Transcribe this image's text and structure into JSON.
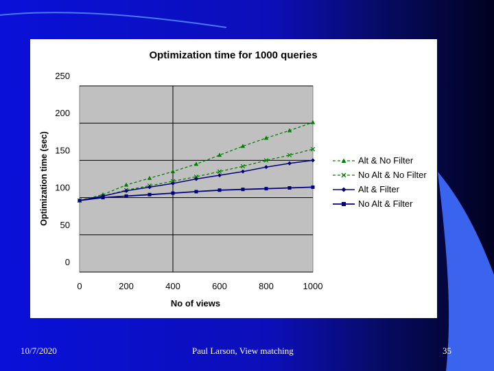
{
  "colors": {
    "background": "#0a10d8",
    "plot_area": "#c0c0c0",
    "green": "#008000",
    "navy": "#00007a",
    "accent_blue": "#3a63ee"
  },
  "footer": {
    "date": "10/7/2020",
    "title": "Paul Larson, View matching",
    "page": "35"
  },
  "chart_data": {
    "type": "line",
    "title": "Optimization time for 1000 queries",
    "xlabel": "No of views",
    "ylabel": "Optimization time (sec)",
    "xlim": [
      0,
      1000
    ],
    "ylim": [
      0,
      250
    ],
    "xticks": [
      "0",
      "200",
      "400",
      "600",
      "800",
      "1000"
    ],
    "yticks": [
      "0",
      "50",
      "100",
      "150",
      "200",
      "250"
    ],
    "grid": "horizontal major gridlines",
    "legend_position": "right",
    "x": [
      0,
      100,
      200,
      300,
      400,
      500,
      600,
      700,
      800,
      900,
      1000
    ],
    "series": [
      {
        "name": "Alt & No Filter",
        "color": "#008000",
        "marker": "triangle",
        "dash": true,
        "values": [
          96,
          104,
          117,
          126,
          135,
          145,
          157,
          169,
          180,
          190,
          201
        ]
      },
      {
        "name": "No Alt & No Filter",
        "color": "#008000",
        "marker": "x",
        "dash": true,
        "values": [
          96,
          102,
          110,
          116,
          122,
          128,
          135,
          142,
          150,
          157,
          165
        ]
      },
      {
        "name": "Alt & Filter",
        "color": "#00007a",
        "marker": "diamond",
        "dash": false,
        "values": [
          96,
          102,
          109,
          114,
          119,
          125,
          130,
          135,
          141,
          146,
          150
        ]
      },
      {
        "name": "No Alt & Filter",
        "color": "#00007a",
        "marker": "square",
        "dash": false,
        "values": [
          96,
          100,
          102,
          104,
          106,
          108,
          110,
          111,
          112,
          113,
          114
        ]
      }
    ]
  }
}
